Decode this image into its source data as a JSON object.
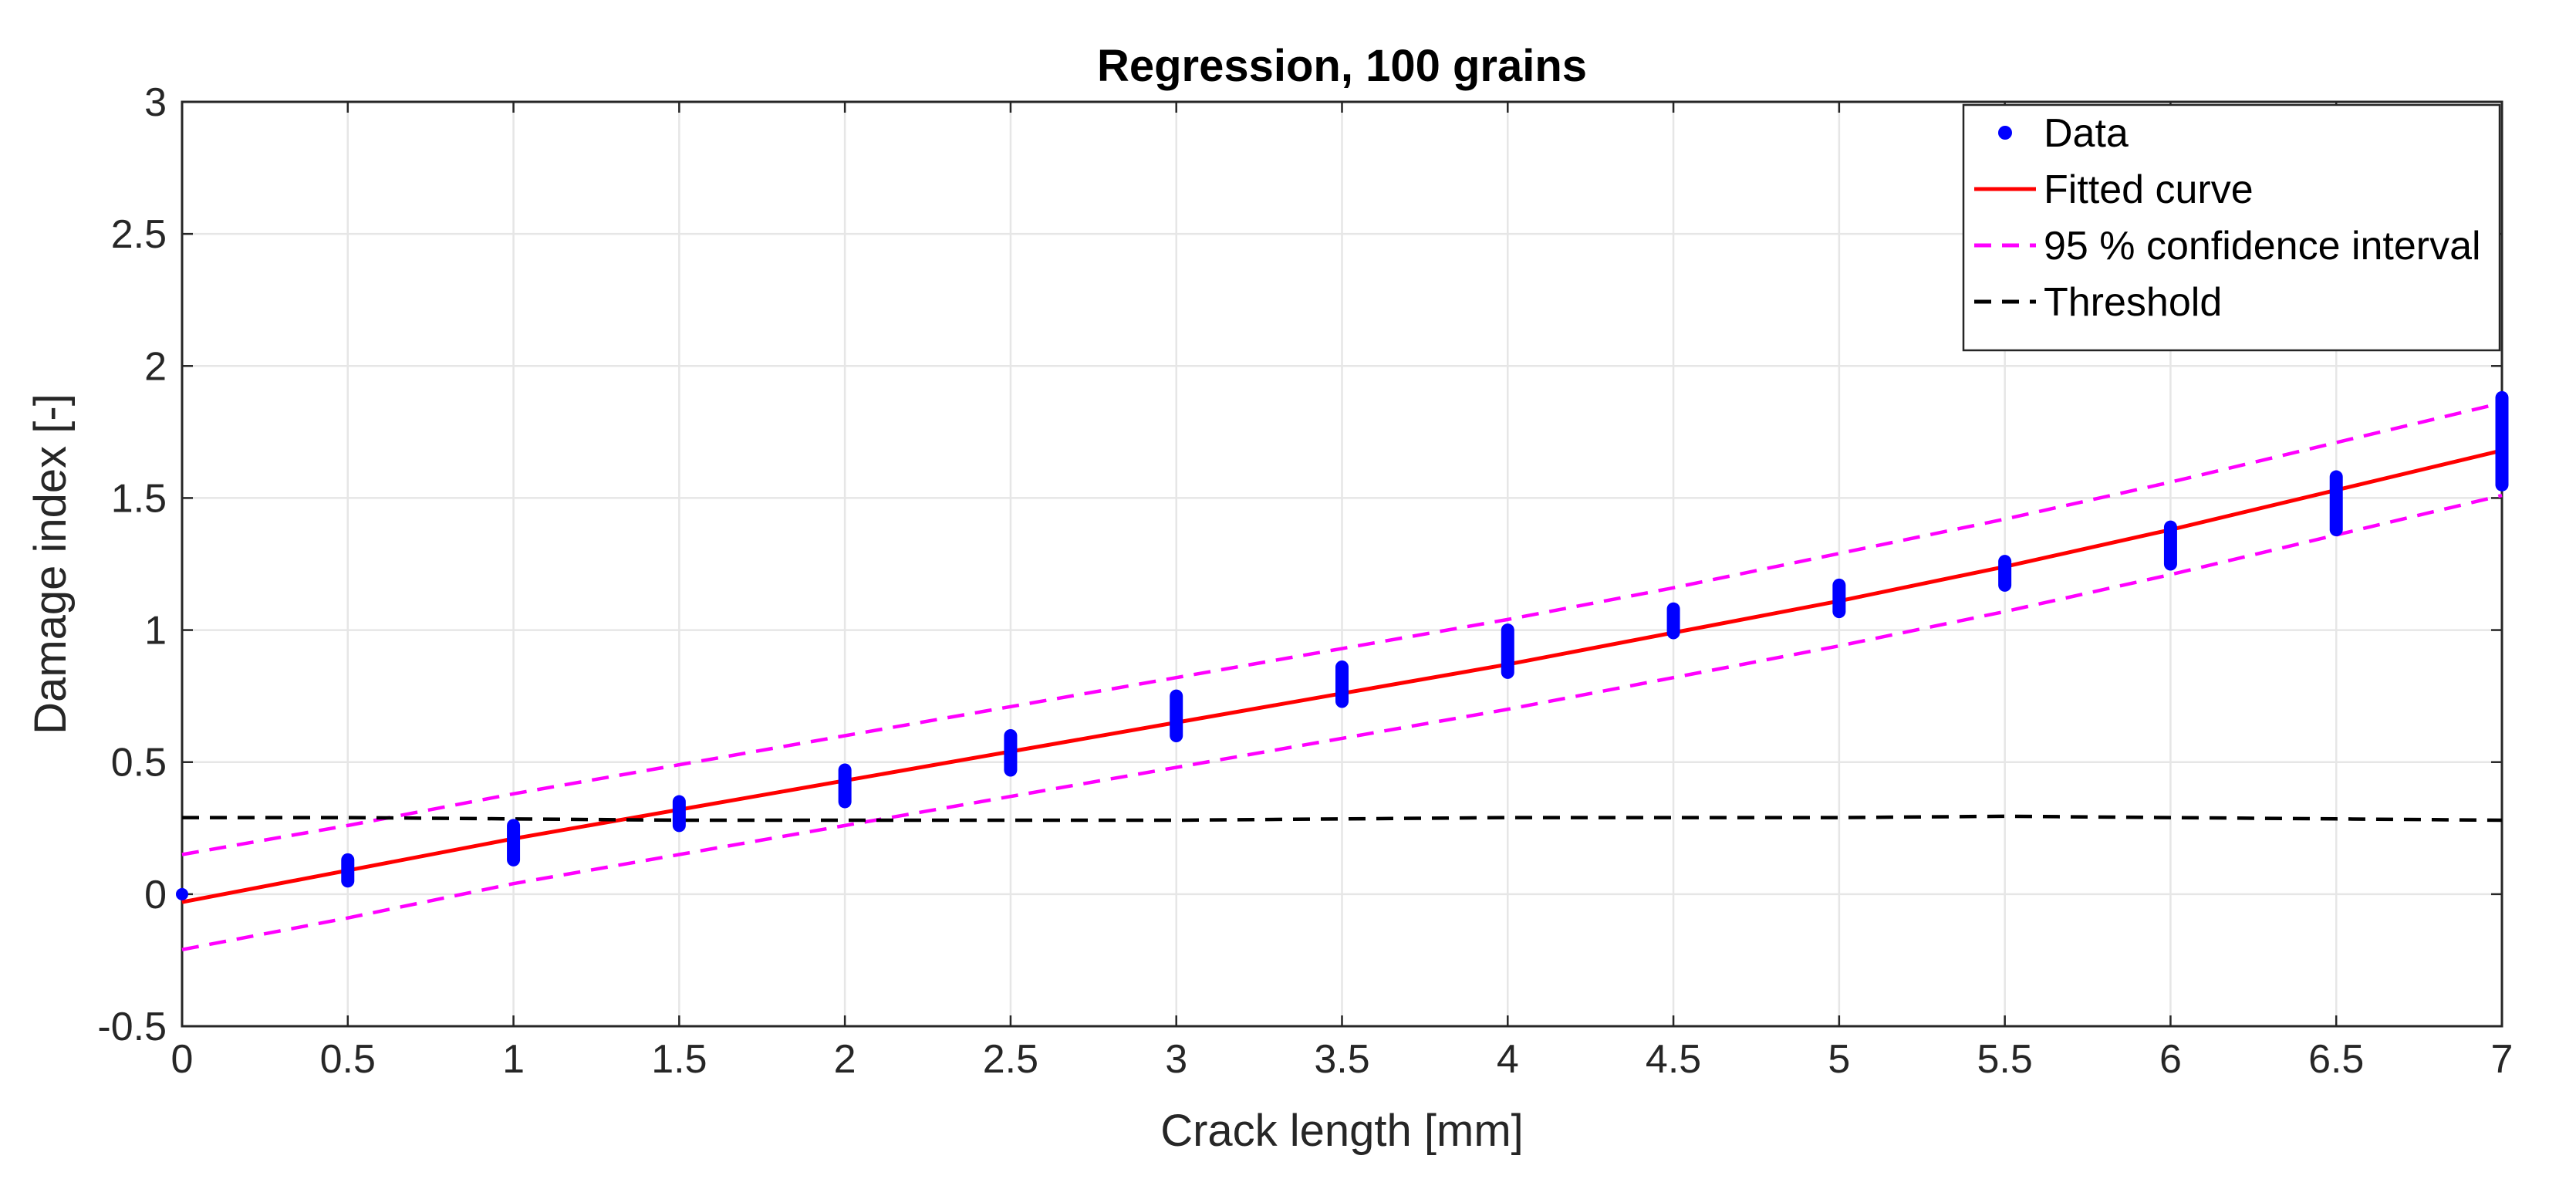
{
  "chart_data": {
    "type": "scatter",
    "title": "Regression, 100 grains",
    "xlabel": "Crack length [mm]",
    "ylabel": "Damage index [-]",
    "xlim": [
      0,
      7
    ],
    "ylim": [
      -0.5,
      3
    ],
    "grid": true,
    "x_ticks": [
      0,
      0.5,
      1,
      1.5,
      2,
      2.5,
      3,
      3.5,
      4,
      4.5,
      5,
      5.5,
      6,
      6.5,
      7
    ],
    "x_tick_labels": [
      "0",
      "0.5",
      "1",
      "1.5",
      "2",
      "2.5",
      "3",
      "3.5",
      "4",
      "4.5",
      "5",
      "5.5",
      "6",
      "6.5",
      "7"
    ],
    "y_ticks": [
      -0.5,
      0,
      0.5,
      1,
      1.5,
      2,
      2.5,
      3
    ],
    "y_tick_labels": [
      "-0.5",
      "0",
      "0.5",
      "1",
      "1.5",
      "2",
      "2.5",
      "3"
    ],
    "legend_position": "top-right",
    "series": [
      {
        "name": "Data",
        "kind": "scatter",
        "color": "#0000ff",
        "clusters": [
          {
            "x": 0,
            "y_min": 0.0,
            "y_max": 0.0
          },
          {
            "x": 0.5,
            "y_min": 0.05,
            "y_max": 0.13
          },
          {
            "x": 1,
            "y_min": 0.13,
            "y_max": 0.26
          },
          {
            "x": 1.5,
            "y_min": 0.26,
            "y_max": 0.35
          },
          {
            "x": 2,
            "y_min": 0.35,
            "y_max": 0.47
          },
          {
            "x": 2.5,
            "y_min": 0.47,
            "y_max": 0.6
          },
          {
            "x": 3,
            "y_min": 0.6,
            "y_max": 0.75
          },
          {
            "x": 3.5,
            "y_min": 0.73,
            "y_max": 0.86
          },
          {
            "x": 4,
            "y_min": 0.84,
            "y_max": 1.0
          },
          {
            "x": 4.5,
            "y_min": 0.99,
            "y_max": 1.08
          },
          {
            "x": 5,
            "y_min": 1.07,
            "y_max": 1.17
          },
          {
            "x": 5.5,
            "y_min": 1.17,
            "y_max": 1.26
          },
          {
            "x": 6,
            "y_min": 1.25,
            "y_max": 1.39
          },
          {
            "x": 6.5,
            "y_min": 1.38,
            "y_max": 1.58
          },
          {
            "x": 7,
            "y_min": 1.55,
            "y_max": 1.88
          }
        ]
      },
      {
        "name": "Fitted curve",
        "kind": "line",
        "style": "solid",
        "color": "#ff0000",
        "x": [
          0,
          0.5,
          1,
          1.5,
          2,
          2.5,
          3,
          3.5,
          4,
          4.5,
          5,
          5.5,
          6,
          6.5,
          7
        ],
        "y": [
          -0.03,
          0.09,
          0.21,
          0.32,
          0.43,
          0.54,
          0.65,
          0.76,
          0.87,
          0.99,
          1.11,
          1.24,
          1.38,
          1.53,
          1.68
        ]
      },
      {
        "name": "95 % confidence interval",
        "kind": "line",
        "style": "dashed",
        "color": "#ff00ff",
        "x": [
          0,
          0.5,
          1,
          1.5,
          2,
          2.5,
          3,
          3.5,
          4,
          4.5,
          5,
          5.5,
          6,
          6.5,
          7
        ],
        "y": [
          0.15,
          0.26,
          0.38,
          0.49,
          0.6,
          0.71,
          0.82,
          0.93,
          1.04,
          1.16,
          1.29,
          1.42,
          1.56,
          1.71,
          1.86
        ]
      },
      {
        "name": "95 % confidence interval (lower)",
        "kind": "line",
        "style": "dashed",
        "color": "#ff00ff",
        "x": [
          0,
          0.5,
          1,
          1.5,
          2,
          2.5,
          3,
          3.5,
          4,
          4.5,
          5,
          5.5,
          6,
          6.5,
          7
        ],
        "y": [
          -0.21,
          -0.09,
          0.04,
          0.15,
          0.26,
          0.37,
          0.48,
          0.59,
          0.7,
          0.82,
          0.94,
          1.07,
          1.21,
          1.36,
          1.51
        ]
      },
      {
        "name": "Threshold",
        "kind": "line",
        "style": "dashed",
        "color": "#000000",
        "x": [
          0,
          0.5,
          1,
          1.5,
          2,
          2.5,
          3,
          3.5,
          4,
          4.5,
          5,
          5.5,
          6,
          6.5,
          7
        ],
        "y": [
          0.29,
          0.29,
          0.285,
          0.28,
          0.28,
          0.28,
          0.28,
          0.285,
          0.29,
          0.29,
          0.29,
          0.295,
          0.29,
          0.285,
          0.28
        ]
      }
    ],
    "legend": [
      {
        "label": "Data",
        "marker": "dot",
        "color": "#0000ff"
      },
      {
        "label": "Fitted curve",
        "marker": "solid",
        "color": "#ff0000"
      },
      {
        "label": "95 % confidence interval",
        "marker": "dashed",
        "color": "#ff00ff"
      },
      {
        "label": "Threshold",
        "marker": "dashed",
        "color": "#000000"
      }
    ]
  }
}
